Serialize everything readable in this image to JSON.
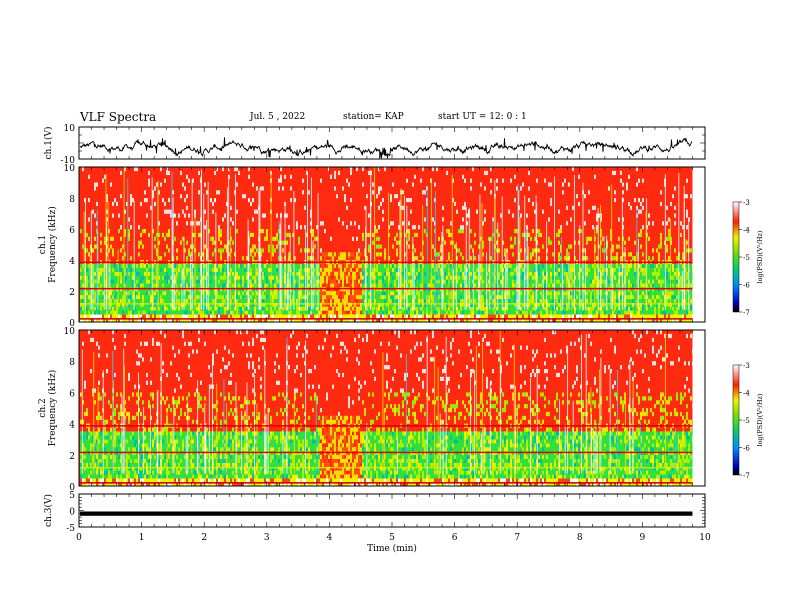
{
  "header": {
    "title": "VLF Spectra",
    "date": "Jul. 5 , 2022",
    "station": "station= KAP",
    "start": "start UT = 12: 0 : 1"
  },
  "chart_data": [
    {
      "type": "line",
      "panel": "ch1-waveform",
      "ylabel": "ch.1(V)",
      "ylim": [
        -10,
        10
      ],
      "yticks": [
        "10",
        "-10"
      ],
      "xlim": [
        0,
        10
      ],
      "description_visible": "black waveform trace oscillating around about 0 V to -5 V"
    },
    {
      "type": "heatmap",
      "panel": "ch1-spectrogram",
      "ylabel": "ch.1",
      "ylabel2": "Frequency (kHz)",
      "ylim": [
        0,
        10
      ],
      "yticks": [
        "0",
        "2",
        "4",
        "6",
        "8",
        "10"
      ],
      "xlim": [
        0,
        10
      ],
      "colorbar": {
        "label": "log(PSD)(V²/Hz)",
        "range": [
          -7,
          -3
        ],
        "ticks": [
          "-3",
          "-4",
          "-5",
          "-6",
          "-7"
        ]
      }
    },
    {
      "type": "heatmap",
      "panel": "ch2-spectrogram",
      "ylabel": "ch.2",
      "ylabel2": "Frequency (kHz)",
      "ylim": [
        0,
        10
      ],
      "yticks": [
        "0",
        "2",
        "4",
        "6",
        "8",
        "10"
      ],
      "xlim": [
        0,
        10
      ],
      "colorbar": {
        "label": "log(PSD)(V²/Hz)",
        "range": [
          -7,
          -3
        ],
        "ticks": [
          "-3",
          "-4",
          "-5",
          "-6",
          "-7"
        ]
      }
    },
    {
      "type": "line",
      "panel": "ch3-waveform",
      "ylabel": "ch.3(V)",
      "ylim": [
        -5,
        5
      ],
      "yticks": [
        "5",
        "0",
        "-5"
      ],
      "xlim": [
        0,
        10
      ],
      "xlabel": "Time (min)",
      "xticks": [
        "0",
        "1",
        "2",
        "3",
        "4",
        "5",
        "6",
        "7",
        "8",
        "9",
        "10"
      ]
    }
  ]
}
